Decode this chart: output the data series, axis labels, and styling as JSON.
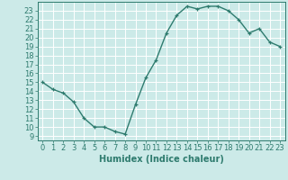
{
  "xlabel": "Humidex (Indice chaleur)",
  "x_values": [
    0,
    1,
    2,
    3,
    4,
    5,
    6,
    7,
    8,
    9,
    10,
    11,
    12,
    13,
    14,
    15,
    16,
    17,
    18,
    19,
    20,
    21,
    22,
    23
  ],
  "y_values": [
    15,
    14.2,
    13.8,
    12.8,
    11,
    10,
    10,
    9.5,
    9.2,
    12.5,
    15.5,
    17.5,
    20.5,
    22.5,
    23.5,
    23.2,
    23.5,
    23.5,
    23.0,
    22.0,
    20.5,
    21.0,
    19.5,
    19.0
  ],
  "ylim": [
    8.5,
    24.0
  ],
  "xlim": [
    -0.5,
    23.5
  ],
  "y_ticks": [
    9,
    10,
    11,
    12,
    13,
    14,
    15,
    16,
    17,
    18,
    19,
    20,
    21,
    22,
    23
  ],
  "x_ticks": [
    0,
    1,
    2,
    3,
    4,
    5,
    6,
    7,
    8,
    9,
    10,
    11,
    12,
    13,
    14,
    15,
    16,
    17,
    18,
    19,
    20,
    21,
    22,
    23
  ],
  "line_color": "#2e7b6e",
  "marker": "+",
  "marker_size": 3,
  "marker_edge_width": 0.9,
  "line_width": 1.0,
  "bg_color": "#cceae8",
  "grid_color": "#ffffff",
  "grid_minor_color": "#e0f5f5",
  "tick_color": "#2e7b6e",
  "label_color": "#2e7b6e",
  "xlabel_fontsize": 7,
  "tick_fontsize": 6,
  "spine_color": "#2e7b6e"
}
